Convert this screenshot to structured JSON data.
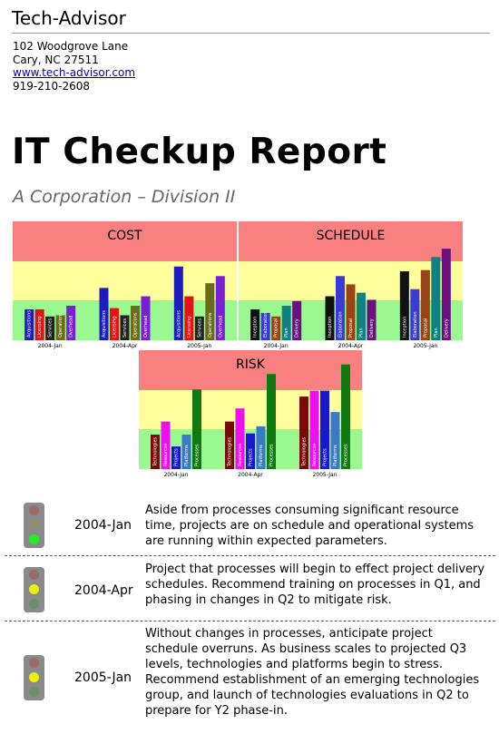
{
  "header": {
    "company": "Tech-Advisor",
    "address_line1": "102 Woodgrove Lane",
    "address_line2": "Cary, NC 27511",
    "website": "www.tech-advisor.com",
    "phone": "919-210-2608"
  },
  "report": {
    "title": "IT Checkup Report",
    "subtitle": "A Corporation – Division II"
  },
  "zone_colors": {
    "red": "#f98080",
    "yellow": "#fefe9a",
    "green": "#99f990"
  },
  "chart_data": [
    {
      "type": "bar",
      "title": "COST",
      "categories": [
        "2004-Jan",
        "2004-Apr",
        "2005-Jan"
      ],
      "ylim": [
        0,
        100
      ],
      "groups": [
        {
          "category": "2004-Jan",
          "bars": [
            {
              "label": "Acquisitions",
              "value": 26,
              "color": "#1c1cc0"
            },
            {
              "label": "Licensing",
              "value": 26,
              "color": "#e41414"
            },
            {
              "label": "Services",
              "value": 20,
              "color": "#222222"
            },
            {
              "label": "Operations",
              "value": 21,
              "color": "#6b6b1c"
            },
            {
              "label": "Overhead",
              "value": 29,
              "color": "#7a1fd6"
            }
          ]
        },
        {
          "category": "2004-Apr",
          "bars": [
            {
              "label": "Acquisitions",
              "value": 44,
              "color": "#1c1cc0"
            },
            {
              "label": "Licensing",
              "value": 27,
              "color": "#e41414"
            },
            {
              "label": "Services",
              "value": 21,
              "color": "#222222"
            },
            {
              "label": "Operations",
              "value": 29,
              "color": "#6b6b1c"
            },
            {
              "label": "Overhead",
              "value": 37,
              "color": "#7a1fd6"
            }
          ]
        },
        {
          "category": "2005-Jan",
          "bars": [
            {
              "label": "Acquisitions",
              "value": 62,
              "color": "#1c1cc0"
            },
            {
              "label": "Licensing",
              "value": 37,
              "color": "#e41414"
            },
            {
              "label": "Services",
              "value": 20,
              "color": "#222222"
            },
            {
              "label": "Operations",
              "value": 48,
              "color": "#6b6b1c"
            },
            {
              "label": "Overhead",
              "value": 54,
              "color": "#7a1fd6"
            }
          ]
        }
      ]
    },
    {
      "type": "bar",
      "title": "SCHEDULE",
      "categories": [
        "2004-Jan",
        "2004-Apr",
        "2005-Jan"
      ],
      "ylim": [
        0,
        100
      ],
      "groups": [
        {
          "category": "2004-Jan",
          "bars": [
            {
              "label": "Inception",
              "value": 26,
              "color": "#111111"
            },
            {
              "label": "Elaboration",
              "value": 23,
              "color": "#3a3ad6"
            },
            {
              "label": "Proposal",
              "value": 20,
              "color": "#9a4416"
            },
            {
              "label": "Plan",
              "value": 29,
              "color": "#108080"
            },
            {
              "label": "Delivery",
              "value": 33,
              "color": "#6a1080"
            }
          ]
        },
        {
          "category": "2004-Apr",
          "bars": [
            {
              "label": "Inception",
              "value": 37,
              "color": "#111111"
            },
            {
              "label": "Elaboration",
              "value": 54,
              "color": "#3a3ad6"
            },
            {
              "label": "Proposal",
              "value": 47,
              "color": "#9a4416"
            },
            {
              "label": "Plan",
              "value": 40,
              "color": "#108080"
            },
            {
              "label": "Delivery",
              "value": 34,
              "color": "#6a1080"
            }
          ]
        },
        {
          "category": "2005-Jan",
          "bars": [
            {
              "label": "Inception",
              "value": 58,
              "color": "#111111"
            },
            {
              "label": "Elaboration",
              "value": 43,
              "color": "#3a3ad6"
            },
            {
              "label": "Proposal",
              "value": 59,
              "color": "#9a4416"
            },
            {
              "label": "Plan",
              "value": 70,
              "color": "#108080"
            },
            {
              "label": "Delivery",
              "value": 77,
              "color": "#6a1080"
            }
          ]
        }
      ]
    },
    {
      "type": "bar",
      "title": "RISK",
      "categories": [
        "2004-Jan",
        "2004-Apr",
        "2005-Jan"
      ],
      "ylim": [
        0,
        100
      ],
      "groups": [
        {
          "category": "2004-Jan",
          "bars": [
            {
              "label": "Technologies",
              "value": 29,
              "color": "#7a0a0a"
            },
            {
              "label": "Resources",
              "value": 40,
              "color": "#ee10ee"
            },
            {
              "label": "Projects",
              "value": 19,
              "color": "#1818d0"
            },
            {
              "label": "Platforms",
              "value": 29,
              "color": "#3a78c8"
            },
            {
              "label": "Processes",
              "value": 67,
              "color": "#107a10"
            }
          ]
        },
        {
          "category": "2004-Apr",
          "bars": [
            {
              "label": "Technologies",
              "value": 40,
              "color": "#7a0a0a"
            },
            {
              "label": "Resources",
              "value": 51,
              "color": "#ee10ee"
            },
            {
              "label": "Projects",
              "value": 30,
              "color": "#1818d0"
            },
            {
              "label": "Platforms",
              "value": 36,
              "color": "#3a78c8"
            },
            {
              "label": "Processes",
              "value": 80,
              "color": "#107a10"
            }
          ]
        },
        {
          "category": "2005-Jan",
          "bars": [
            {
              "label": "Technologies",
              "value": 61,
              "color": "#7a0a0a"
            },
            {
              "label": "Resources",
              "value": 66,
              "color": "#ee10ee"
            },
            {
              "label": "Projects",
              "value": 66,
              "color": "#1818d0"
            },
            {
              "label": "Platforms",
              "value": 48,
              "color": "#3a78c8"
            },
            {
              "label": "Processes",
              "value": 88,
              "color": "#107a10"
            }
          ]
        }
      ]
    }
  ],
  "assessments": [
    {
      "date": "2004-Jan",
      "light": "green",
      "text": "Aside from processes consuming significant resource time, projects are on schedule and operational systems are running within expected parameters."
    },
    {
      "date": "2004-Apr",
      "light": "yellow",
      "text": "Project that processes will begin to effect project delivery schedules. Recommend training on processes in Q1, and phasing in changes in Q2 to mitigate risk."
    },
    {
      "date": "2005-Jan",
      "light": "yellow",
      "text": "Without changes in processes, anticipate project schedule overruns. As business scales to projected Q3 levels, technologies and platforms begin to stress. Recommend establishment of an emerging technologies group, and launch of technologies evaluations in Q2 to prepare for Y2 phase-in."
    }
  ],
  "light_colors": {
    "red_off": "#9c6a6a",
    "yellow_off": "#8f8f70",
    "green_off": "#6a8f6a",
    "green_on": "#22ee22",
    "yellow_on": "#eeee10"
  }
}
